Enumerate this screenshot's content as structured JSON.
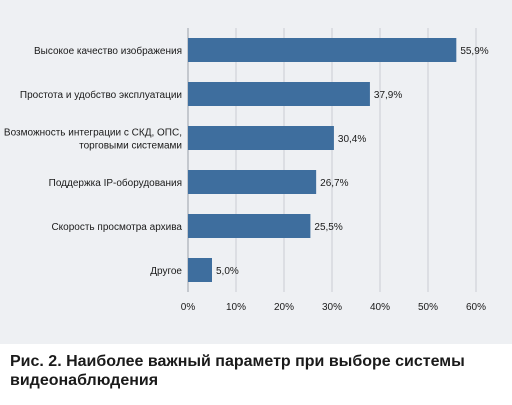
{
  "colors": {
    "bar": "#3e6e9e",
    "grid": "#c9cdd3",
    "panel": "#eef0f3",
    "text": "#1a1a1a"
  },
  "caption": "Рис. 2. Наиболее важный параметр при выборе системы\nвидеонаблюдения",
  "chart_data": {
    "type": "bar",
    "orientation": "horizontal",
    "categories": [
      [
        "Высокое качество изображения"
      ],
      [
        "Простота и удобство эксплуатации"
      ],
      [
        "Возможность интеграции с СКД, ОПС,",
        "торговыми системами"
      ],
      [
        "Поддержка IP-оборудования"
      ],
      [
        "Скорость просмотра архива"
      ],
      [
        "Другое"
      ]
    ],
    "values": [
      55.9,
      37.9,
      30.4,
      26.7,
      25.5,
      5.0
    ],
    "value_labels": [
      "55,9%",
      "37,9%",
      "30,4%",
      "26,7%",
      "25,5%",
      "5,0%"
    ],
    "xlim": [
      0,
      60
    ],
    "x_ticks": [
      0,
      10,
      20,
      30,
      40,
      50,
      60
    ],
    "x_tick_labels": [
      "0%",
      "10%",
      "20%",
      "30%",
      "40%",
      "50%",
      "60%"
    ],
    "grid": true
  }
}
